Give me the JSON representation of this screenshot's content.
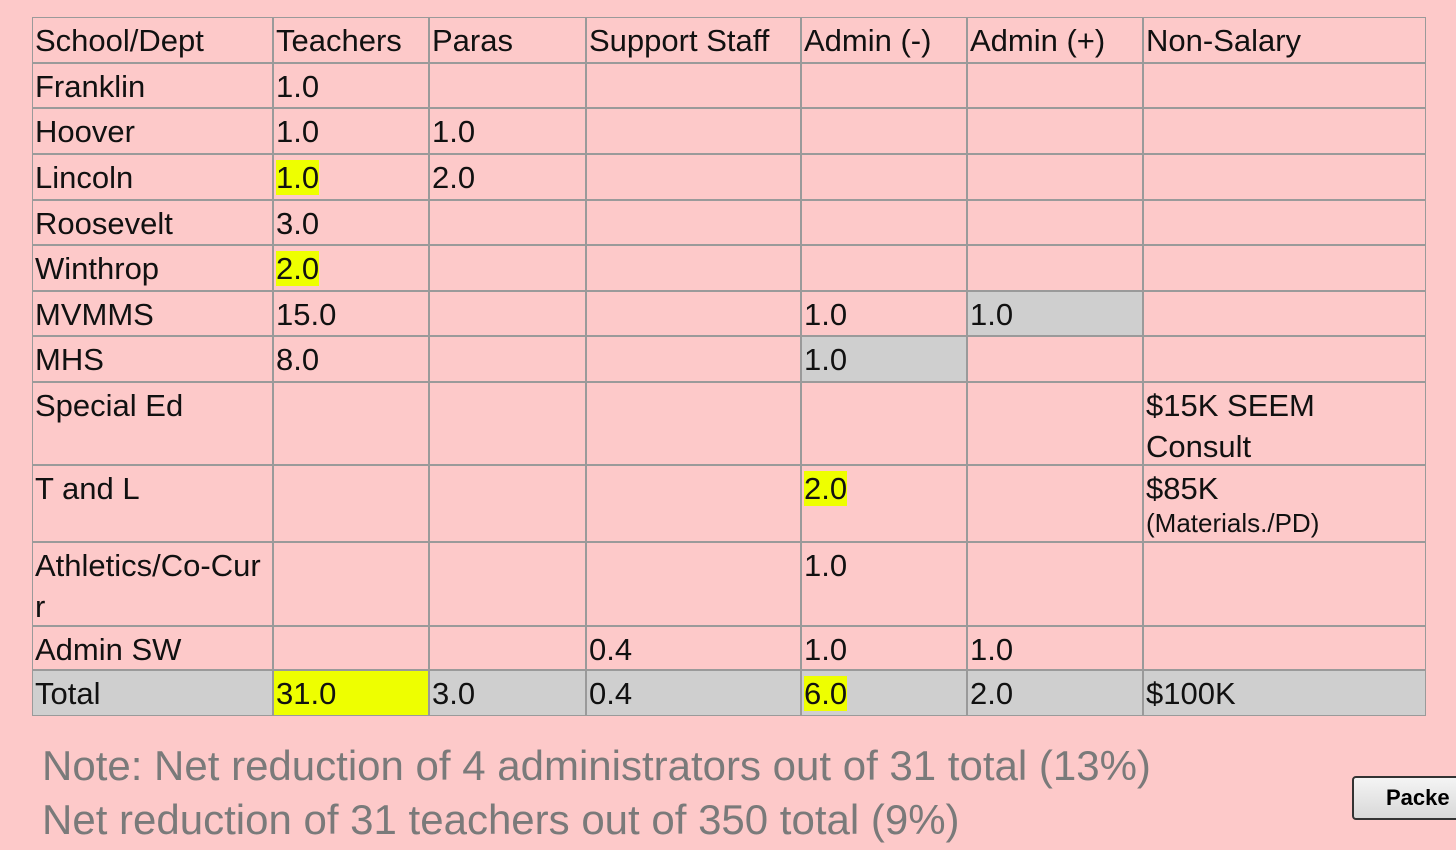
{
  "table": {
    "header": [
      "School/Dept",
      "Teachers",
      "Paras",
      "Support Staff",
      "Admin (-)",
      "Admin (+)",
      "Non-Salary"
    ],
    "rows": [
      [
        "Franklin",
        "1.0",
        null,
        null,
        null,
        null,
        null
      ],
      [
        "Hoover",
        "1.0",
        "1.0",
        null,
        null,
        null,
        null
      ],
      [
        "Lincoln",
        "1.0",
        "2.0",
        null,
        null,
        null,
        null
      ],
      [
        "Roosevelt",
        "3.0",
        null,
        null,
        null,
        null,
        null
      ],
      [
        "Winthrop",
        "2.0",
        null,
        null,
        null,
        null,
        null
      ],
      [
        "MVMMS",
        "15.0",
        null,
        null,
        "1.0",
        "1.0",
        null
      ],
      [
        "MHS",
        "8.0",
        null,
        null,
        "1.0",
        null,
        null
      ],
      [
        "Special Ed",
        null,
        null,
        null,
        null,
        null,
        "$15K SEEM Consult"
      ],
      [
        "T and L",
        null,
        null,
        null,
        "2.0",
        null,
        [
          "$85K",
          "(Materials./PD)"
        ]
      ],
      [
        "Athletics/Co-Curr",
        null,
        null,
        null,
        "1.0",
        null,
        null
      ],
      [
        "Admin SW",
        null,
        null,
        "0.4",
        "1.0",
        "1.0",
        null
      ],
      [
        "Total",
        "31.0",
        "3.0",
        "0.4",
        "6.0",
        "2.0",
        "$100K"
      ]
    ]
  },
  "notes": [
    "Note: Net reduction of 4 administrators out of 31 total (13%)",
    "Net reduction of 31 teachers out of 350 total (9%)"
  ],
  "button": "Packe"
}
